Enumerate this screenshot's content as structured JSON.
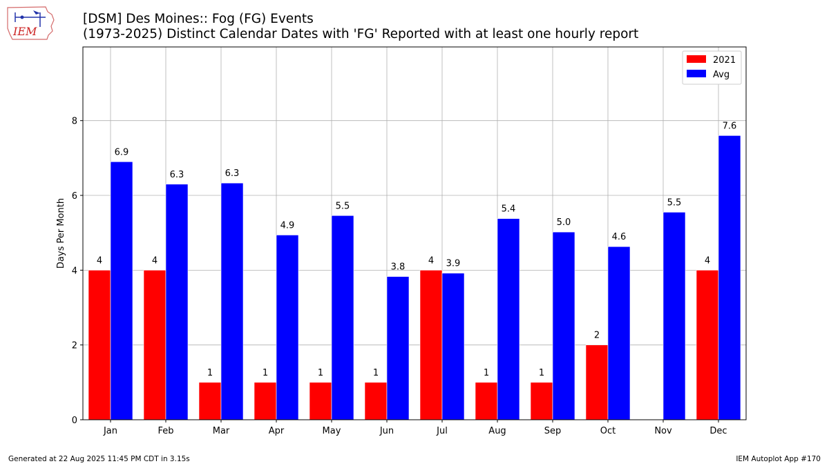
{
  "logo": {
    "text": "IEM"
  },
  "title": "[DSM] Des Moines:: Fog (FG) Events",
  "subtitle": "(1973-2025) Distinct Calendar Dates with 'FG' Reported with at least one hourly report",
  "footer": {
    "generated": "Generated at 22 Aug 2025 11:45 PM CDT in 3.15s",
    "app": "IEM Autoplot App #170"
  },
  "colors": {
    "series_2021": "#ff0000",
    "series_avg": "#0000ff",
    "grid": "#b0b0b0"
  },
  "chart_data": {
    "type": "bar",
    "title": "[DSM] Des Moines:: Fog (FG) Events",
    "subtitle": "(1973-2025) Distinct Calendar Dates with 'FG' Reported with at least one hourly report",
    "xlabel": "",
    "ylabel": "Days Per Month",
    "ylim": [
      0,
      9.97
    ],
    "yticks": [
      0,
      2,
      4,
      6,
      8
    ],
    "grid": true,
    "legend_position": "top-right",
    "categories": [
      "Jan",
      "Feb",
      "Mar",
      "Apr",
      "May",
      "Jun",
      "Jul",
      "Aug",
      "Sep",
      "Oct",
      "Nov",
      "Dec"
    ],
    "series": [
      {
        "name": "2021",
        "color": "#ff0000",
        "values": [
          4,
          4,
          1,
          1,
          1,
          1,
          4,
          1,
          1,
          2,
          null,
          4
        ],
        "labels": [
          "4",
          "4",
          "1",
          "1",
          "1",
          "1",
          "4",
          "1",
          "1",
          "2",
          "",
          "4"
        ]
      },
      {
        "name": "Avg",
        "color": "#0000ff",
        "values": [
          6.9,
          6.3,
          6.33,
          4.94,
          5.46,
          3.83,
          3.92,
          5.38,
          5.02,
          4.63,
          5.55,
          7.6
        ],
        "labels": [
          "6.9",
          "6.3",
          "6.3",
          "4.9",
          "5.5",
          "3.8",
          "3.9",
          "5.4",
          "5.0",
          "4.6",
          "5.5",
          "7.6"
        ]
      }
    ]
  }
}
